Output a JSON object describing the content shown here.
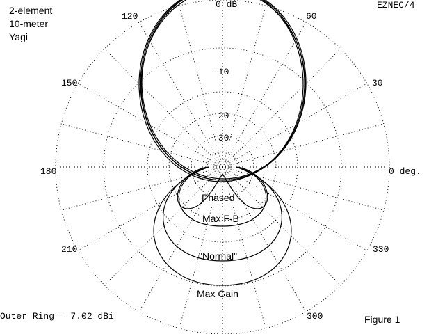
{
  "chart_data": {
    "type": "polar",
    "title": [
      "2-element",
      "10-meter",
      "Yagi"
    ],
    "watermark": "EZNEC/4",
    "figure_label": "Figure 1",
    "footer": "Outer Ring = 7.02 dBi",
    "outer_ring_dbi": 7.02,
    "grid": true,
    "radial_labels": [
      "0 dB",
      "-10",
      "-20",
      "-30"
    ],
    "angle_labels": [
      "0 deg.",
      "30",
      "60",
      "120",
      "150",
      "180",
      "210",
      "300",
      "330"
    ],
    "series": [
      {
        "name": "Phased"
      },
      {
        "name": "Max F-B"
      },
      {
        "name": "\"Normal\""
      },
      {
        "name": "Max Gain"
      }
    ]
  }
}
